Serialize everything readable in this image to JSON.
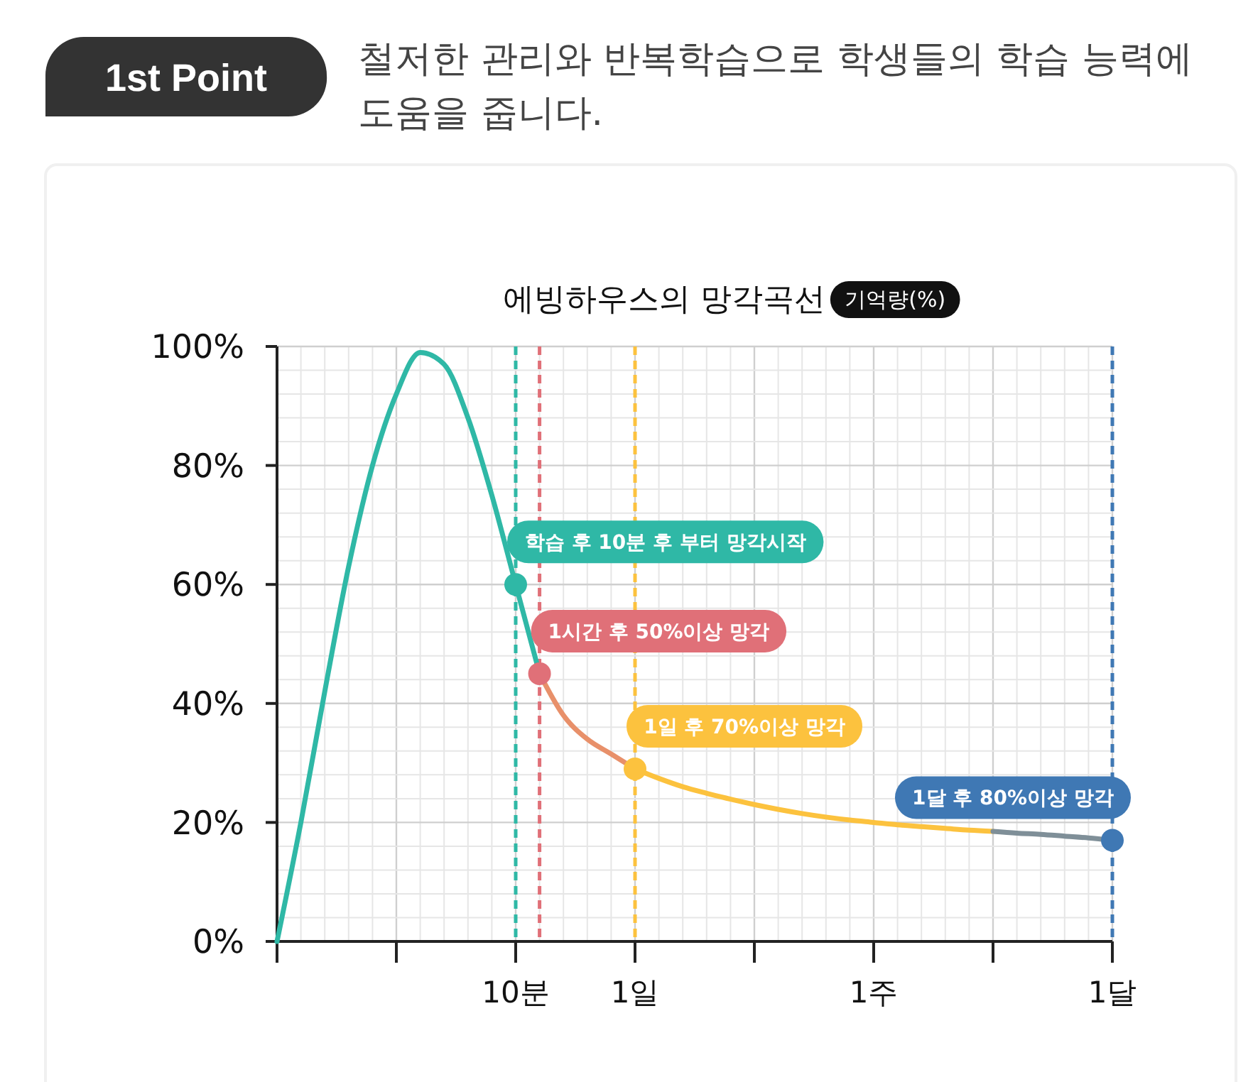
{
  "chart_data": {
    "type": "line",
    "title": "에빙하우스의 망각곡선",
    "ylabel": "기억량(%)",
    "annotations": [
      "1st Point",
      "철저한 관리와 반복학습으로 학생들의 학습 능력에 도움을 줍니다.",
      {
        "text": "학습 후 10분 후 부터 망각시작",
        "x": "10분",
        "y": 60
      },
      "1시간 후 50%이상 망각",
      {
        "text": "1일 후 70%이상 망각",
        "x": "1일",
        "y": 29
      },
      {
        "text": "1달 후 80%이상 망각",
        "x": "1달",
        "y": 17
      }
    ],
    "categories": [
      null,
      null,
      null,
      null,
      null,
      null,
      null,
      null,
      null,
      null,
      "10분",
      null,
      null,
      null,
      null,
      "1일",
      null,
      null,
      null,
      null,
      null,
      null,
      null,
      null,
      null,
      "1주",
      null,
      null,
      null,
      null,
      null,
      null,
      null,
      null,
      null,
      "1달"
    ],
    "ylim": [
      0,
      100
    ],
    "yticks": [
      {
        "value": 0,
        "label": "0%"
      },
      {
        "value": 20,
        "label": "20%"
      },
      {
        "value": 40,
        "label": "40%"
      },
      {
        "value": 60,
        "label": "60%"
      },
      {
        "value": 80,
        "label": "80%"
      },
      {
        "value": 100,
        "label": "100%"
      }
    ],
    "grid": true,
    "line_style": "solid",
    "ref_lines": [
      {
        "axis": "x",
        "value": "10분",
        "color": "#2fb8a6",
        "line_style": "dashed"
      },
      {
        "axis": "x",
        "value": "1일",
        "color": "#fcc23e",
        "line_style": "dashed"
      },
      {
        "axis": "x",
        "value": "1달",
        "color": "#3f78b4",
        "line_style": "dashed"
      }
    ],
    "series": [
      {
        "color": "#2fb8a6",
        "values": [
          0,
          20,
          42,
          63,
          80,
          92,
          99,
          97,
          88,
          75,
          60,
          45,
          null,
          null,
          null,
          null,
          null,
          null,
          null,
          null,
          null,
          null,
          null,
          null,
          null,
          null,
          null,
          null,
          null,
          null,
          null,
          null,
          null,
          null,
          null,
          null
        ]
      },
      {
        "color": "#e8906a",
        "values": [
          null,
          null,
          null,
          null,
          null,
          null,
          null,
          null,
          null,
          null,
          null,
          45,
          38,
          34,
          31.5,
          29,
          null,
          null,
          null,
          null,
          null,
          null,
          null,
          null,
          null,
          null,
          null,
          null,
          null,
          null,
          null,
          null,
          null,
          null,
          null,
          null
        ]
      },
      {
        "color": "#fcc23e",
        "values": [
          null,
          null,
          null,
          null,
          null,
          null,
          null,
          null,
          null,
          null,
          null,
          null,
          null,
          null,
          null,
          29,
          27.4,
          26,
          24.9,
          23.9,
          23,
          22.2,
          21.5,
          20.9,
          20.4,
          20,
          19.6,
          19.3,
          19,
          18.7,
          18.5,
          null,
          null,
          null,
          null,
          null
        ]
      },
      {
        "color": "#7f8f98",
        "values": [
          null,
          null,
          null,
          null,
          null,
          null,
          null,
          null,
          null,
          null,
          null,
          null,
          null,
          null,
          null,
          null,
          null,
          null,
          null,
          null,
          null,
          null,
          null,
          null,
          null,
          null,
          null,
          null,
          null,
          null,
          18.5,
          18.2,
          18,
          17.7,
          17.4,
          17
        ]
      },
      {
        "type": "scatter",
        "marker": "circle",
        "values": [
          null,
          null,
          null,
          null,
          null,
          null,
          null,
          null,
          null,
          null,
          60,
          45,
          null,
          null,
          null,
          29,
          null,
          null,
          null,
          null,
          null,
          null,
          null,
          null,
          null,
          null,
          null,
          null,
          null,
          null,
          null,
          null,
          null,
          null,
          null,
          17
        ],
        "colors": [
          null,
          null,
          null,
          null,
          null,
          null,
          null,
          null,
          null,
          null,
          "#2fb8a6",
          "#e07078",
          null,
          null,
          null,
          "#fcc23e",
          null,
          null,
          null,
          null,
          null,
          null,
          null,
          null,
          null,
          null,
          null,
          null,
          null,
          null,
          null,
          null,
          null,
          null,
          null,
          "#3f78b4"
        ]
      }
    ]
  }
}
